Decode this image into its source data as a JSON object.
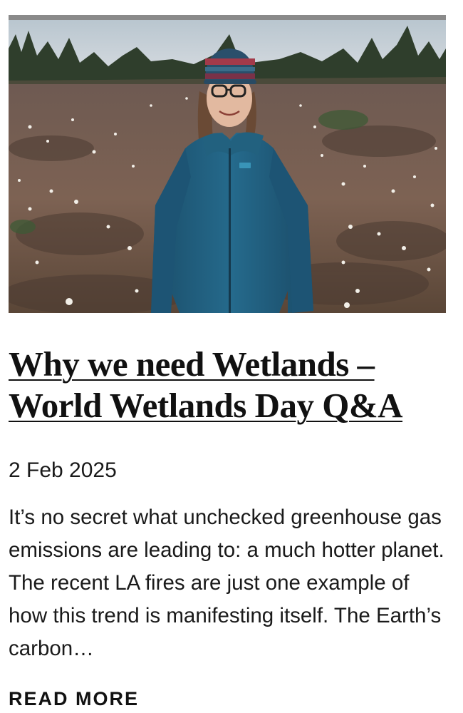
{
  "article": {
    "image_alt": "Woman in a blue rain jacket and striped beanie standing in a wetland with cotton grass and pine trees",
    "title": "Why we need Wetlands – World Wetlands Day Q&A",
    "date": "2 Feb 2025",
    "excerpt": "It’s no secret what unchecked greenhouse gas emissions are leading to: a much hotter planet. The recent LA fires are just one example of how this trend is manifesting itself. The Earth’s carbon…",
    "read_more": "READ MORE"
  },
  "colors": {
    "text": "#111111",
    "frame": "#8a8a8a",
    "jacket": "#1f5a78",
    "heath": "#7a5c4c"
  }
}
